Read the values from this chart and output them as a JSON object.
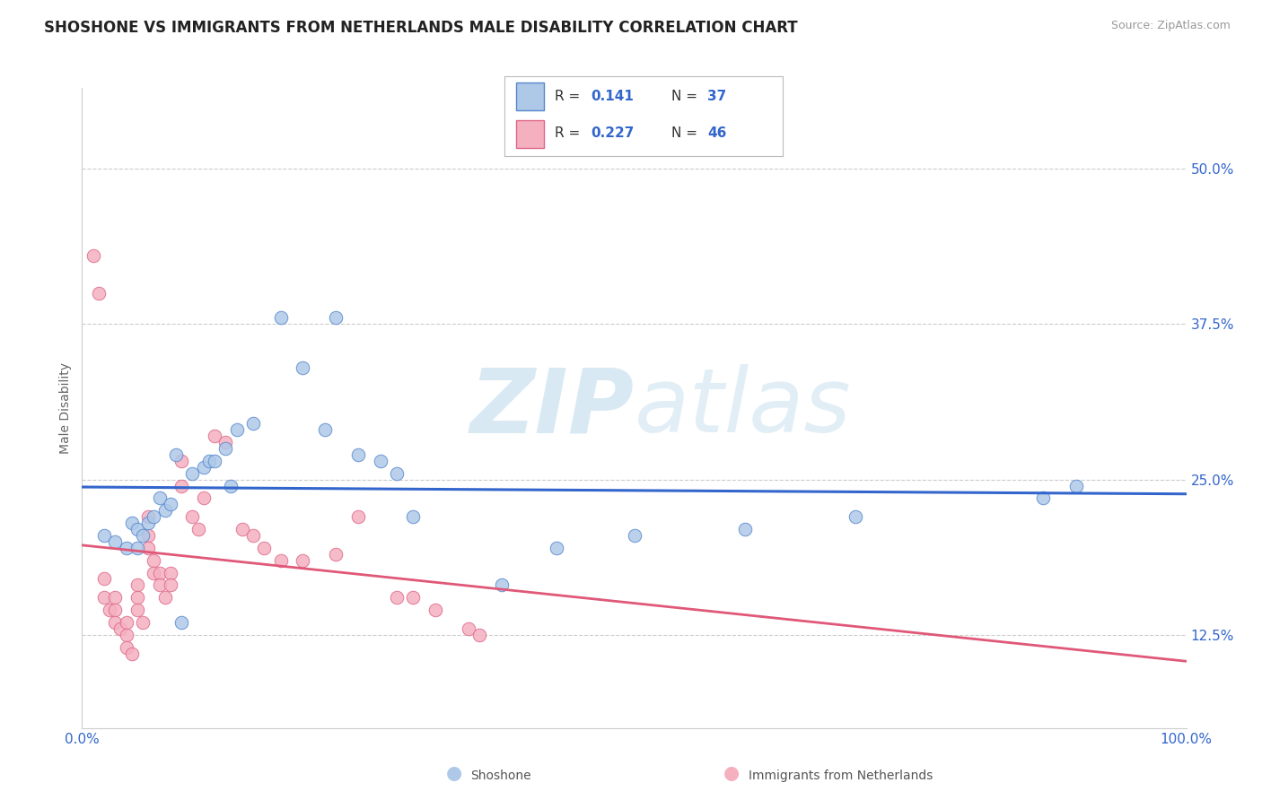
{
  "title": "SHOSHONE VS IMMIGRANTS FROM NETHERLANDS MALE DISABILITY CORRELATION CHART",
  "source": "Source: ZipAtlas.com",
  "ylabel": "Male Disability",
  "xlim": [
    0.0,
    1.0
  ],
  "ylim": [
    0.05,
    0.565
  ],
  "yticks": [
    0.125,
    0.25,
    0.375,
    0.5
  ],
  "ytick_labels": [
    "12.5%",
    "25.0%",
    "37.5%",
    "50.0%"
  ],
  "xticks": [
    0.0,
    0.25,
    0.5,
    0.75,
    1.0
  ],
  "xtick_labels": [
    "0.0%",
    "",
    "",
    "",
    "100.0%"
  ],
  "series1_name": "Shoshone",
  "series2_name": "Immigrants from Netherlands",
  "series1_color": "#aec8e8",
  "series2_color": "#f5b0c0",
  "series1_edge": "#5588cc",
  "series2_edge": "#dd6688",
  "series1_R": 0.141,
  "series1_N": 37,
  "series2_R": 0.227,
  "series2_N": 46,
  "legend_color": "#3366cc",
  "trend1_color": "#3366cc",
  "trend2_color": "#e05878",
  "watermark_color": "#d0e4f0",
  "grid_color": "#cccccc",
  "background_color": "#ffffff",
  "title_fontsize": 12,
  "tick_fontsize": 11,
  "ylabel_fontsize": 10,
  "series1_x": [
    0.02,
    0.03,
    0.04,
    0.045,
    0.05,
    0.05,
    0.055,
    0.06,
    0.065,
    0.07,
    0.075,
    0.08,
    0.085,
    0.09,
    0.1,
    0.11,
    0.115,
    0.12,
    0.13,
    0.135,
    0.14,
    0.155,
    0.18,
    0.2,
    0.22,
    0.23,
    0.25,
    0.27,
    0.285,
    0.3,
    0.38,
    0.43,
    0.5,
    0.6,
    0.7,
    0.87,
    0.9
  ],
  "series1_y": [
    0.205,
    0.2,
    0.195,
    0.215,
    0.195,
    0.21,
    0.205,
    0.215,
    0.22,
    0.235,
    0.225,
    0.23,
    0.27,
    0.135,
    0.255,
    0.26,
    0.265,
    0.265,
    0.275,
    0.245,
    0.29,
    0.295,
    0.38,
    0.34,
    0.29,
    0.38,
    0.27,
    0.265,
    0.255,
    0.22,
    0.165,
    0.195,
    0.205,
    0.21,
    0.22,
    0.235,
    0.245
  ],
  "series2_x": [
    0.01,
    0.015,
    0.02,
    0.02,
    0.025,
    0.03,
    0.03,
    0.03,
    0.035,
    0.04,
    0.04,
    0.04,
    0.045,
    0.05,
    0.05,
    0.05,
    0.055,
    0.06,
    0.06,
    0.06,
    0.065,
    0.065,
    0.07,
    0.07,
    0.075,
    0.08,
    0.08,
    0.09,
    0.09,
    0.1,
    0.105,
    0.11,
    0.12,
    0.13,
    0.145,
    0.155,
    0.165,
    0.18,
    0.2,
    0.23,
    0.25,
    0.285,
    0.3,
    0.32,
    0.35,
    0.36
  ],
  "series2_y": [
    0.43,
    0.4,
    0.17,
    0.155,
    0.145,
    0.155,
    0.145,
    0.135,
    0.13,
    0.135,
    0.125,
    0.115,
    0.11,
    0.165,
    0.155,
    0.145,
    0.135,
    0.22,
    0.205,
    0.195,
    0.185,
    0.175,
    0.175,
    0.165,
    0.155,
    0.175,
    0.165,
    0.265,
    0.245,
    0.22,
    0.21,
    0.235,
    0.285,
    0.28,
    0.21,
    0.205,
    0.195,
    0.185,
    0.185,
    0.19,
    0.22,
    0.155,
    0.155,
    0.145,
    0.13,
    0.125
  ]
}
